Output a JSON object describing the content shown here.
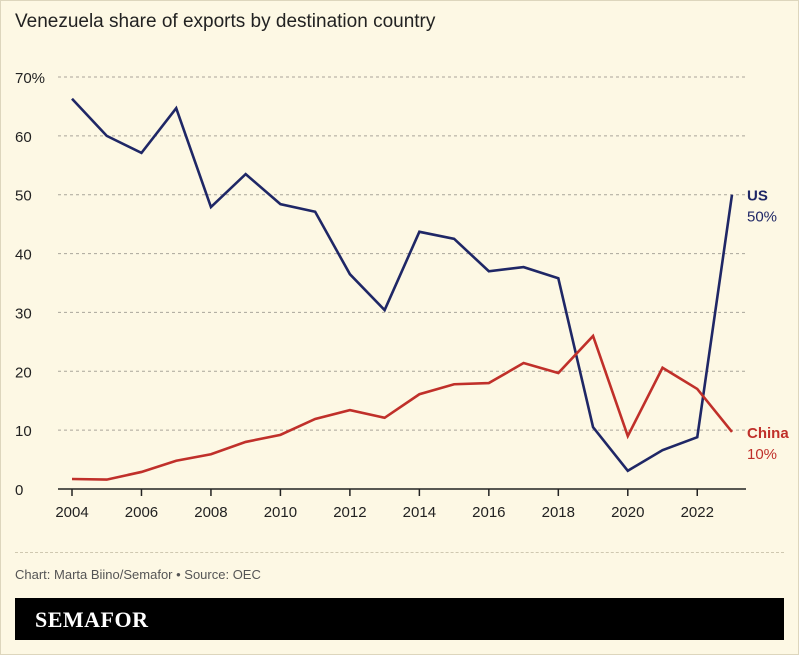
{
  "chart_data": {
    "type": "line",
    "title": "Venezuela share of exports by destination country",
    "x": [
      2004,
      2005,
      2006,
      2007,
      2008,
      2009,
      2010,
      2011,
      2012,
      2013,
      2014,
      2015,
      2016,
      2017,
      2018,
      2019,
      2020,
      2021,
      2022,
      2023
    ],
    "series": [
      {
        "name": "US",
        "end_label": "50%",
        "color": "#1f2766",
        "values": [
          66.3,
          60.0,
          57.1,
          64.7,
          47.9,
          53.5,
          48.4,
          47.1,
          36.5,
          30.4,
          43.7,
          42.5,
          37.0,
          37.7,
          35.8,
          10.5,
          3.1,
          6.6,
          8.8,
          50.0
        ]
      },
      {
        "name": "China",
        "end_label": "10%",
        "color": "#c0302a",
        "values": [
          1.7,
          1.6,
          2.9,
          4.8,
          5.9,
          8.0,
          9.2,
          11.9,
          13.4,
          12.1,
          16.1,
          17.8,
          18.0,
          21.4,
          19.7,
          26.0,
          9.0,
          20.6,
          17.0,
          9.7
        ]
      }
    ],
    "ylim": [
      0,
      70
    ],
    "y_ticks": [
      "0",
      "10",
      "20",
      "30",
      "40",
      "50",
      "60",
      "70%"
    ],
    "y_tick_values": [
      0,
      10,
      20,
      30,
      40,
      50,
      60,
      70
    ],
    "x_ticks": [
      "2004",
      "2006",
      "2008",
      "2010",
      "2012",
      "2014",
      "2016",
      "2018",
      "2020",
      "2022"
    ],
    "x_tick_values": [
      2004,
      2006,
      2008,
      2010,
      2012,
      2014,
      2016,
      2018,
      2020,
      2022
    ],
    "grid": true,
    "legend": "inline-right"
  },
  "source": "Chart: Marta Biino/Semafor • Source: OEC",
  "brand": "SEMAFOR"
}
